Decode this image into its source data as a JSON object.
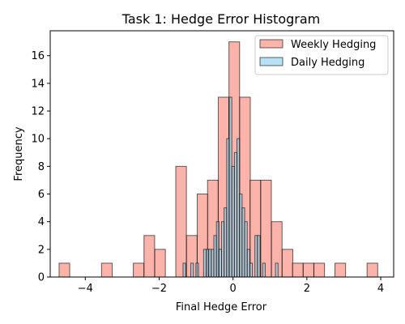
{
  "chart_data": {
    "type": "bar",
    "title": "Task 1: Hedge Error Histogram",
    "xlabel": "Final Hedge Error",
    "ylabel": "Frequency",
    "xlim": [
      -4.95,
      4.35
    ],
    "ylim": [
      0,
      17.8
    ],
    "xticks": [
      -4,
      -2,
      0,
      2,
      4
    ],
    "xtick_labels": [
      "−4",
      "−2",
      "0",
      "2",
      "4"
    ],
    "yticks": [
      0,
      2,
      4,
      6,
      8,
      10,
      12,
      14,
      16
    ],
    "ytick_labels": [
      "0",
      "2",
      "4",
      "6",
      "8",
      "10",
      "12",
      "14",
      "16"
    ],
    "grid": false,
    "legend_position": "top-right",
    "series": [
      {
        "name": "Weekly Hedging",
        "color": "#fa8072",
        "opacity": 0.6,
        "bin_width": 0.288,
        "bins": [
          {
            "x0": -4.71,
            "count": 1
          },
          {
            "x0": -3.56,
            "count": 1
          },
          {
            "x0": -2.7,
            "count": 1
          },
          {
            "x0": -2.41,
            "count": 3
          },
          {
            "x0": -2.12,
            "count": 2
          },
          {
            "x0": -1.55,
            "count": 8
          },
          {
            "x0": -1.26,
            "count": 3
          },
          {
            "x0": -0.97,
            "count": 6
          },
          {
            "x0": -0.69,
            "count": 7
          },
          {
            "x0": -0.4,
            "count": 13
          },
          {
            "x0": -0.11,
            "count": 17
          },
          {
            "x0": 0.18,
            "count": 13
          },
          {
            "x0": 0.46,
            "count": 7
          },
          {
            "x0": 0.75,
            "count": 7
          },
          {
            "x0": 1.04,
            "count": 4
          },
          {
            "x0": 1.33,
            "count": 2
          },
          {
            "x0": 1.61,
            "count": 1
          },
          {
            "x0": 1.9,
            "count": 1
          },
          {
            "x0": 2.19,
            "count": 1
          },
          {
            "x0": 2.76,
            "count": 1
          },
          {
            "x0": 3.63,
            "count": 1
          }
        ]
      },
      {
        "name": "Daily Hedging",
        "color": "#87ceeb",
        "opacity": 0.6,
        "bin_width": 0.0695,
        "bins": [
          {
            "x0": -1.353,
            "count": 1
          },
          {
            "x0": -1.144,
            "count": 1
          },
          {
            "x0": -1.005,
            "count": 1
          },
          {
            "x0": -0.797,
            "count": 2
          },
          {
            "x0": -0.727,
            "count": 2
          },
          {
            "x0": -0.658,
            "count": 2
          },
          {
            "x0": -0.588,
            "count": 2
          },
          {
            "x0": -0.519,
            "count": 3
          },
          {
            "x0": -0.449,
            "count": 4
          },
          {
            "x0": -0.38,
            "count": 2
          },
          {
            "x0": -0.31,
            "count": 4
          },
          {
            "x0": -0.241,
            "count": 5
          },
          {
            "x0": -0.171,
            "count": 10
          },
          {
            "x0": -0.102,
            "count": 13
          },
          {
            "x0": -0.032,
            "count": 8
          },
          {
            "x0": 0.037,
            "count": 9
          },
          {
            "x0": 0.107,
            "count": 10
          },
          {
            "x0": 0.176,
            "count": 6
          },
          {
            "x0": 0.246,
            "count": 5
          },
          {
            "x0": 0.315,
            "count": 4
          },
          {
            "x0": 0.385,
            "count": 2
          },
          {
            "x0": 0.454,
            "count": 1
          },
          {
            "x0": 0.593,
            "count": 3
          },
          {
            "x0": 0.663,
            "count": 3
          },
          {
            "x0": 0.802,
            "count": 1
          },
          {
            "x0": 1.15,
            "count": 1
          }
        ]
      }
    ]
  }
}
